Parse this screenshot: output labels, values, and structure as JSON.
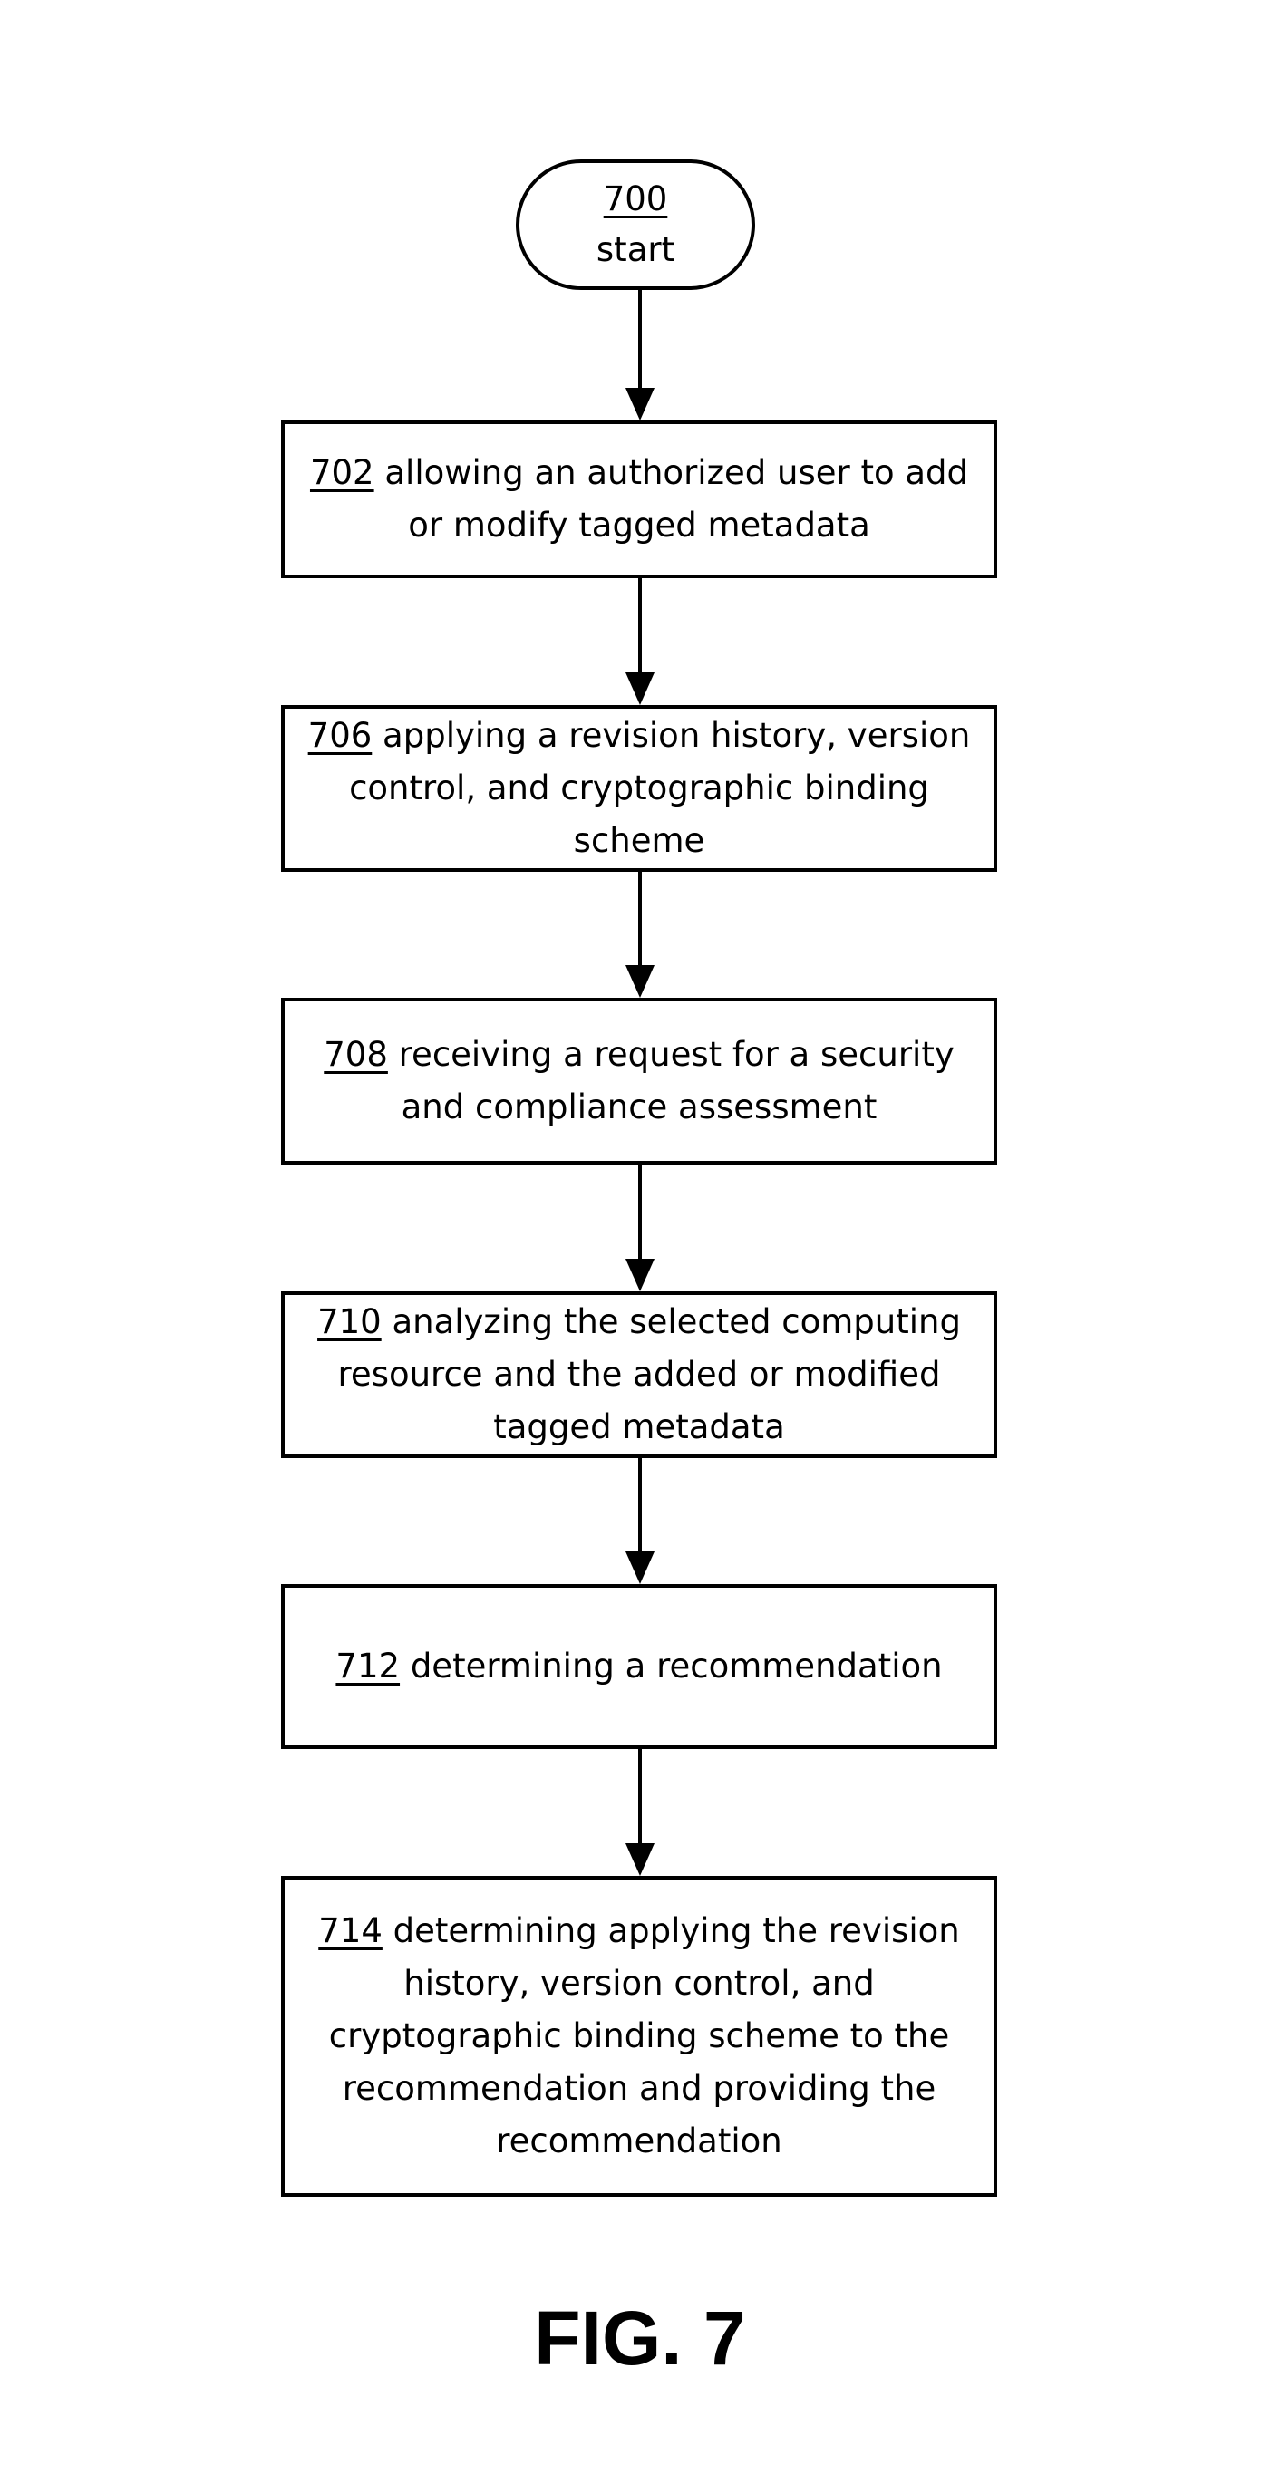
{
  "start": {
    "ref": "700",
    "label": "start"
  },
  "steps": [
    {
      "ref": "702",
      "text": "allowing an authorized user to add or modify tagged metadata"
    },
    {
      "ref": "706",
      "text": "applying a revision history, version control, and cryptographic binding scheme"
    },
    {
      "ref": "708",
      "text": "receiving a request for a security and compliance assessment"
    },
    {
      "ref": "710",
      "text": "analyzing the selected computing resource and the added or modified tagged metadata"
    },
    {
      "ref": "712",
      "text": "determining a recommendation"
    },
    {
      "ref": "714",
      "text": "determining applying the revision history, version control, and cryptographic binding scheme to the recommendation and providing the recommendation"
    }
  ],
  "figure_label": "FIG. 7",
  "colors": {
    "stroke": "#000000",
    "background": "#ffffff"
  }
}
